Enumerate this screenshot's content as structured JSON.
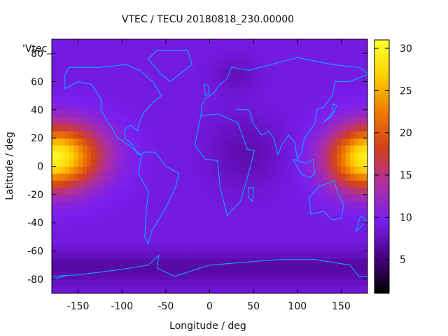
{
  "chart_data": {
    "type": "heatmap",
    "title": "VTEC / TECU 20180818_230.00000",
    "xlabel": "Longitude / deg",
    "ylabel": "Latitude / deg",
    "xlim": [
      -180,
      180
    ],
    "ylim": [
      -90,
      90
    ],
    "xticks": [
      -150,
      -100,
      -50,
      0,
      50,
      100,
      150
    ],
    "yticks": [
      -80,
      -60,
      -40,
      -20,
      0,
      20,
      40,
      60,
      80
    ],
    "colorbar": {
      "min": 1,
      "max": 31,
      "ticks": [
        5,
        10,
        15,
        20,
        25,
        30
      ]
    },
    "key_label": "'Vtec_",
    "colormap": [
      "#000000",
      "#4b0084",
      "#7a1ff0",
      "#ad2fa0",
      "#d2401f",
      "#ee7a00",
      "#ffd000",
      "#ffff30"
    ],
    "coastline_color": "#00b4ff",
    "tec_features": {
      "background_level": 9,
      "crests": [
        {
          "name": "",
          "lon": -160,
          "lat": 8,
          "lon_span": 45,
          "lat_span": 22,
          "peak": 21
        },
        {
          "name": "",
          "lon": 170,
          "lat": 5,
          "lon_span": 40,
          "lat_span": 22,
          "peak": 21
        }
      ]
    }
  }
}
